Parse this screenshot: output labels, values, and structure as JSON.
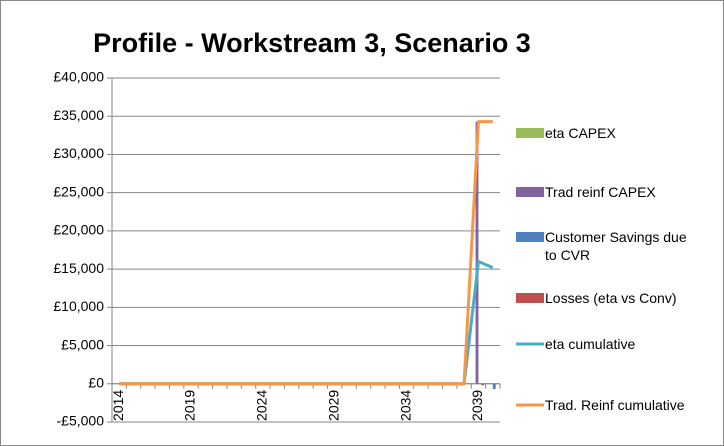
{
  "chart_data": {
    "type": "bar",
    "title": "Profile - Workstream 3, Scenario 3",
    "categories": [
      "2014",
      null,
      null,
      null,
      null,
      "2019",
      null,
      null,
      null,
      null,
      "2024",
      null,
      null,
      null,
      null,
      "2029",
      null,
      null,
      null,
      null,
      "2034",
      null,
      null,
      null,
      null,
      "2039",
      null
    ],
    "ylim": [
      -5000,
      40000
    ],
    "yticks": [
      {
        "value": -5000,
        "label": "-£5,000"
      },
      {
        "value": 0,
        "label": "£0"
      },
      {
        "value": 5000,
        "label": "£5,000"
      },
      {
        "value": 10000,
        "label": "£10,000"
      },
      {
        "value": 15000,
        "label": "£15,000"
      },
      {
        "value": 20000,
        "label": "£20,000"
      },
      {
        "value": 25000,
        "label": "£25,000"
      },
      {
        "value": 30000,
        "label": "£30,000"
      },
      {
        "value": 35000,
        "label": "£35,000"
      },
      {
        "value": 40000,
        "label": "£40,000"
      }
    ],
    "grid": true,
    "legend": "right",
    "series": [
      {
        "name": "eta CAPEX",
        "type": "bar",
        "color": "#9bbb59",
        "values": [
          0,
          0,
          0,
          0,
          0,
          0,
          0,
          0,
          0,
          0,
          0,
          0,
          0,
          0,
          0,
          0,
          0,
          0,
          0,
          0,
          0,
          0,
          0,
          0,
          0,
          0,
          0
        ]
      },
      {
        "name": "Trad reinf CAPEX",
        "type": "bar",
        "color": "#8064a2",
        "values": [
          0,
          0,
          0,
          0,
          0,
          0,
          0,
          0,
          0,
          0,
          0,
          0,
          0,
          0,
          0,
          0,
          0,
          0,
          0,
          0,
          0,
          0,
          0,
          0,
          0,
          34300,
          0
        ]
      },
      {
        "name": "Customer Savings due to CVR",
        "type": "bar",
        "color": "#4f81bd",
        "values": [
          0,
          0,
          0,
          0,
          0,
          0,
          0,
          0,
          0,
          0,
          0,
          0,
          0,
          0,
          0,
          0,
          0,
          0,
          0,
          0,
          0,
          0,
          0,
          0,
          0,
          0,
          -700
        ]
      },
      {
        "name": "Losses (eta vs Conv)",
        "type": "bar",
        "color": "#c0504d",
        "values": [
          0,
          0,
          0,
          0,
          0,
          0,
          0,
          0,
          0,
          0,
          0,
          0,
          0,
          0,
          0,
          0,
          0,
          0,
          0,
          0,
          0,
          0,
          0,
          0,
          0,
          -200,
          0
        ]
      },
      {
        "name": "eta cumulative",
        "type": "line",
        "color": "#4bacc6",
        "values": [
          0,
          0,
          0,
          0,
          0,
          0,
          0,
          0,
          0,
          0,
          0,
          0,
          0,
          0,
          0,
          0,
          0,
          0,
          0,
          0,
          0,
          0,
          0,
          0,
          0,
          16000,
          15200
        ]
      },
      {
        "name": "Trad. Reinf cumulative",
        "type": "line",
        "color": "#f79646",
        "values": [
          0,
          0,
          0,
          0,
          0,
          0,
          0,
          0,
          0,
          0,
          0,
          0,
          0,
          0,
          0,
          0,
          0,
          0,
          0,
          0,
          0,
          0,
          0,
          0,
          0,
          34300,
          34300
        ]
      }
    ]
  }
}
